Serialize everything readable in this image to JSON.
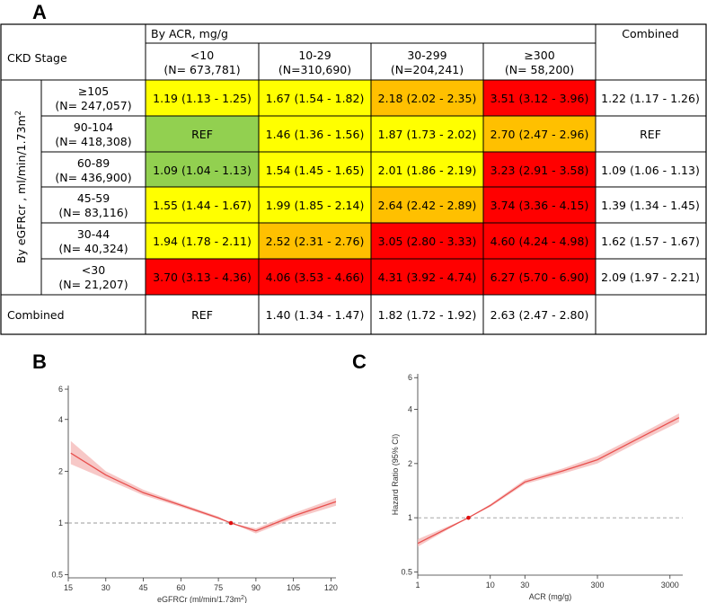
{
  "panels": {
    "a": "A",
    "b": "B",
    "c": "C"
  },
  "table": {
    "ckd_stage_label": "CKD Stage",
    "by_acr_label": "By ACR, mg/g",
    "combined_label": "Combined",
    "row_group_label": "By eGFRcr , ml/min/1.73m",
    "row_group_sup": "2",
    "columns": [
      {
        "range": "<10",
        "n": "(N= 673,781)"
      },
      {
        "range": "10-29",
        "n": "(N=310,690)"
      },
      {
        "range": "30-299",
        "n": "(N=204,241)"
      },
      {
        "range": "≥300",
        "n": "(N= 58,200)"
      }
    ],
    "rows": [
      {
        "range": "≥105",
        "n": "(N= 247,057)",
        "cells": [
          {
            "text": "1.19 (1.13 - 1.25)",
            "level": "yellow"
          },
          {
            "text": "1.67 (1.54 - 1.82)",
            "level": "yellow"
          },
          {
            "text": "2.18 (2.02 - 2.35)",
            "level": "orange"
          },
          {
            "text": "3.51 (3.12 - 3.96)",
            "level": "red"
          }
        ],
        "combined": "1.22 (1.17 - 1.26)"
      },
      {
        "range": "90-104",
        "n": "(N= 418,308)",
        "cells": [
          {
            "text": "REF",
            "level": "green"
          },
          {
            "text": "1.46 (1.36 - 1.56)",
            "level": "yellow"
          },
          {
            "text": "1.87 (1.73 - 2.02)",
            "level": "yellow"
          },
          {
            "text": "2.70 (2.47 - 2.96)",
            "level": "orange"
          }
        ],
        "combined": "REF"
      },
      {
        "range": "60-89",
        "n": "(N= 436,900)",
        "cells": [
          {
            "text": "1.09 (1.04 - 1.13)",
            "level": "green"
          },
          {
            "text": "1.54 (1.45 - 1.65)",
            "level": "yellow"
          },
          {
            "text": "2.01 (1.86 - 2.19)",
            "level": "yellow"
          },
          {
            "text": "3.23 (2.91 - 3.58)",
            "level": "red"
          }
        ],
        "combined": "1.09 (1.06 - 1.13)"
      },
      {
        "range": "45-59",
        "n": "(N= 83,116)",
        "cells": [
          {
            "text": "1.55 (1.44 - 1.67)",
            "level": "yellow"
          },
          {
            "text": "1.99 (1.85 - 2.14)",
            "level": "yellow"
          },
          {
            "text": "2.64 (2.42 - 2.89)",
            "level": "orange"
          },
          {
            "text": "3.74 (3.36 - 4.15)",
            "level": "red"
          }
        ],
        "combined": "1.39 (1.34 - 1.45)"
      },
      {
        "range": "30-44",
        "n": "(N= 40,324)",
        "cells": [
          {
            "text": "1.94 (1.78 - 2.11)",
            "level": "yellow"
          },
          {
            "text": "2.52 (2.31 - 2.76)",
            "level": "orange"
          },
          {
            "text": "3.05 (2.80 - 3.33)",
            "level": "red"
          },
          {
            "text": "4.60 (4.24 - 4.98)",
            "level": "red"
          }
        ],
        "combined": "1.62 (1.57 - 1.67)"
      },
      {
        "range": "<30",
        "n": "(N= 21,207)",
        "cells": [
          {
            "text": "3.70 (3.13 - 4.36)",
            "level": "red"
          },
          {
            "text": "4.06 (3.53 - 4.66)",
            "level": "red"
          },
          {
            "text": "4.31 (3.92 - 4.74)",
            "level": "red"
          },
          {
            "text": "6.27 (5.70 - 6.90)",
            "level": "red"
          }
        ],
        "combined": "2.09 (1.97 - 2.21)"
      }
    ],
    "combined_row": [
      "REF",
      "1.40 (1.34 - 1.47)",
      "1.82 (1.72 - 1.92)",
      "2.63 (2.47 - 2.80)"
    ]
  },
  "colors": {
    "green": "#92d050",
    "yellow": "#ffff00",
    "orange": "#ffc000",
    "red": "#ff0000",
    "line": "#e8504e",
    "band": "#f4b6b4",
    "ref_dot": "#e01010",
    "ref_line": "#9a9a9a"
  },
  "chart_data": [
    {
      "id": "B",
      "type": "line",
      "title": "",
      "xlabel": "eGFRCr (ml/min/1.73m",
      "xlabel_sup": "2",
      "xlabel_tail": ")",
      "ylabel": "",
      "yscale": "log",
      "xlim": [
        15,
        122
      ],
      "ylim": [
        0.48,
        6.3
      ],
      "xticks": [
        15,
        30,
        45,
        60,
        75,
        90,
        105,
        120
      ],
      "yticks": [
        0.5,
        1,
        2,
        4,
        6
      ],
      "x": [
        16,
        30,
        45,
        60,
        75,
        80,
        90,
        105,
        122
      ],
      "y": [
        2.55,
        1.9,
        1.5,
        1.27,
        1.07,
        1.0,
        0.9,
        1.1,
        1.33
      ],
      "lower": [
        2.2,
        1.8,
        1.45,
        1.24,
        1.05,
        1.0,
        0.87,
        1.06,
        1.26
      ],
      "upper": [
        3.0,
        2.0,
        1.56,
        1.3,
        1.09,
        1.0,
        0.93,
        1.14,
        1.4
      ],
      "reference": {
        "x": 80,
        "y": 1
      }
    },
    {
      "id": "C",
      "type": "line",
      "title": "",
      "xlabel": "ACR (mg/g)",
      "ylabel": "Hazard Ratio (95% CI)",
      "xscale": "log",
      "yscale": "log",
      "xlim": [
        1,
        4500
      ],
      "ylim": [
        0.48,
        6.3
      ],
      "xticks": [
        1,
        10,
        30,
        300,
        3000
      ],
      "yticks": [
        0.5,
        1,
        2,
        4,
        6
      ],
      "x": [
        1,
        5,
        10,
        30,
        100,
        300,
        1000,
        4000
      ],
      "y": [
        0.72,
        1.0,
        1.17,
        1.58,
        1.82,
        2.1,
        2.7,
        3.6
      ],
      "lower": [
        0.69,
        1.0,
        1.15,
        1.54,
        1.76,
        2.0,
        2.58,
        3.4
      ],
      "upper": [
        0.76,
        1.0,
        1.19,
        1.63,
        1.88,
        2.2,
        2.82,
        3.8
      ],
      "reference": {
        "x": 5,
        "y": 1
      }
    }
  ]
}
